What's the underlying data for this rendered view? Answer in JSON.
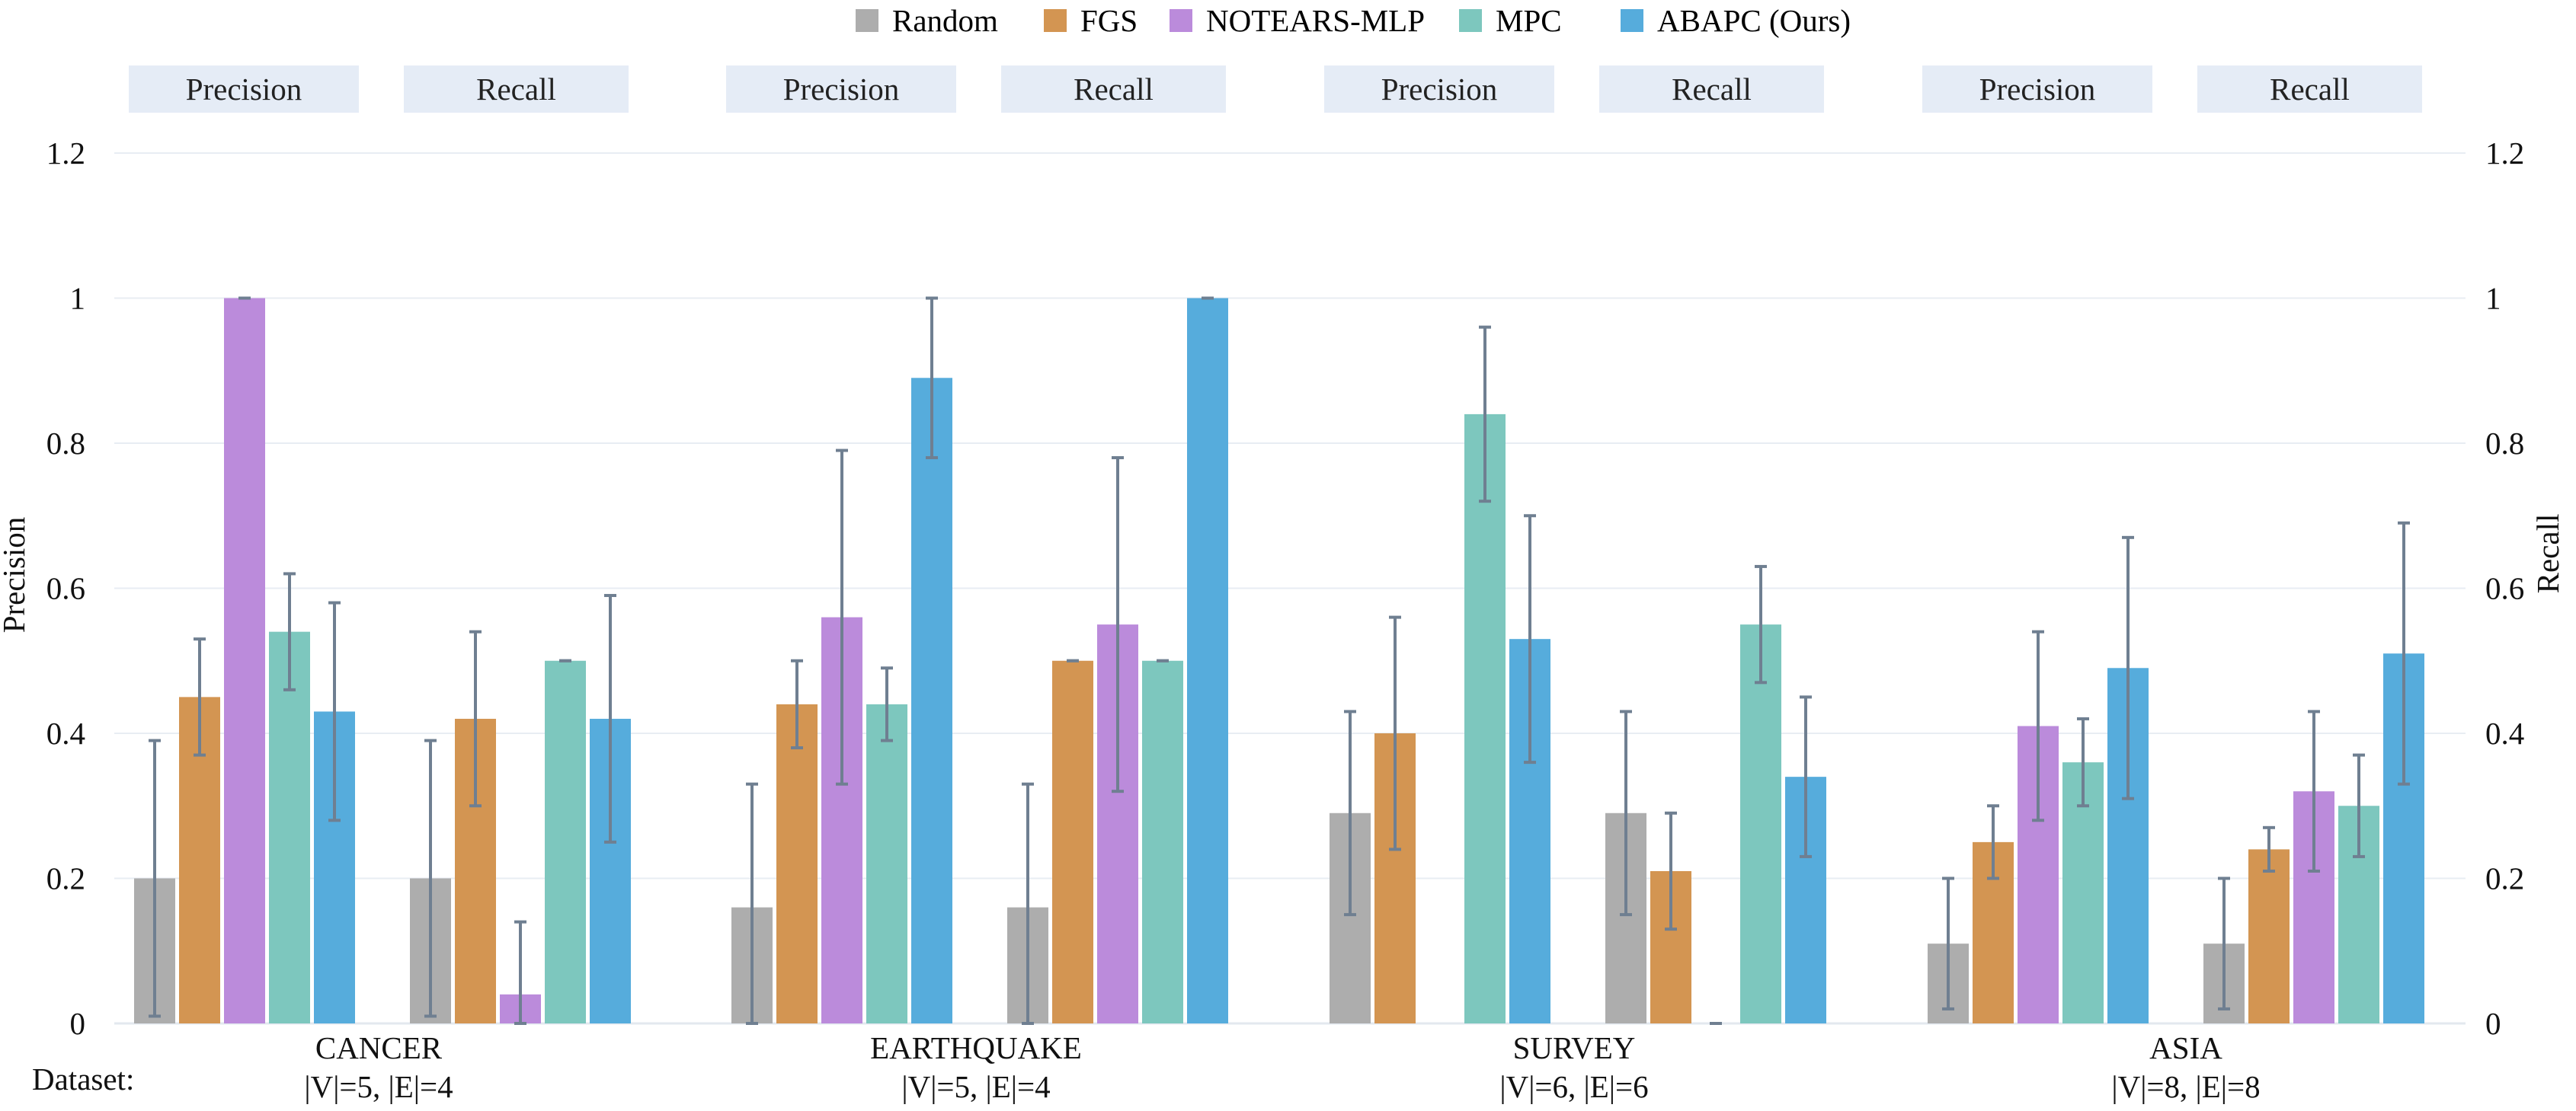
{
  "chart_data": {
    "type": "bar",
    "legend": [
      {
        "name": "Random",
        "color": "#adadad"
      },
      {
        "name": "FGS",
        "color": "#d39552"
      },
      {
        "name": "NOTEARS-MLP",
        "color": "#bb8bdb"
      },
      {
        "name": "MPC",
        "color": "#7dc7be"
      },
      {
        "name": "ABAPC (Ours)",
        "color": "#56acdc"
      }
    ],
    "panel_labels": [
      "Precision",
      "Recall",
      "Precision",
      "Recall",
      "Precision",
      "Recall",
      "Precision",
      "Recall"
    ],
    "ylabel_left": "Precision",
    "ylabel_right": "Recall",
    "ylim": [
      0,
      1.2
    ],
    "y_ticks": [
      "0",
      "0.2",
      "0.4",
      "0.6",
      "0.8",
      "1",
      "1.2"
    ],
    "xlabel": "Dataset:",
    "groups": [
      {
        "name": "CANCER",
        "subtitle": "|V|=5, |E|=4",
        "precision": [
          {
            "value": 0.2,
            "err": [
              0.01,
              0.39
            ]
          },
          {
            "value": 0.45,
            "err": [
              0.37,
              0.53
            ]
          },
          {
            "value": 1.0,
            "err": [
              1.0,
              1.0
            ]
          },
          {
            "value": 0.54,
            "err": [
              0.46,
              0.62
            ]
          },
          {
            "value": 0.43,
            "err": [
              0.28,
              0.58
            ]
          }
        ],
        "recall": [
          {
            "value": 0.2,
            "err": [
              0.01,
              0.39
            ]
          },
          {
            "value": 0.42,
            "err": [
              0.3,
              0.54
            ]
          },
          {
            "value": 0.04,
            "err": [
              0.0,
              0.14
            ]
          },
          {
            "value": 0.5,
            "err": [
              0.5,
              0.5
            ]
          },
          {
            "value": 0.42,
            "err": [
              0.25,
              0.59
            ]
          }
        ]
      },
      {
        "name": "EARTHQUAKE",
        "subtitle": "|V|=5, |E|=4",
        "precision": [
          {
            "value": 0.16,
            "err": [
              0.0,
              0.33
            ]
          },
          {
            "value": 0.44,
            "err": [
              0.38,
              0.5
            ]
          },
          {
            "value": 0.56,
            "err": [
              0.33,
              0.79
            ]
          },
          {
            "value": 0.44,
            "err": [
              0.39,
              0.49
            ]
          },
          {
            "value": 0.89,
            "err": [
              0.78,
              1.0
            ]
          }
        ],
        "recall": [
          {
            "value": 0.16,
            "err": [
              0.0,
              0.33
            ]
          },
          {
            "value": 0.5,
            "err": [
              0.5,
              0.5
            ]
          },
          {
            "value": 0.55,
            "err": [
              0.32,
              0.78
            ]
          },
          {
            "value": 0.5,
            "err": [
              0.5,
              0.5
            ]
          },
          {
            "value": 1.0,
            "err": [
              1.0,
              1.0
            ]
          }
        ]
      },
      {
        "name": "SURVEY",
        "subtitle": "|V|=6, |E|=6",
        "precision": [
          {
            "value": 0.29,
            "err": [
              0.15,
              0.43
            ]
          },
          {
            "value": 0.4,
            "err": [
              0.24,
              0.56
            ]
          },
          {
            "value": 0.0,
            "err": null
          },
          {
            "value": 0.84,
            "err": [
              0.72,
              0.96
            ]
          },
          {
            "value": 0.53,
            "err": [
              0.36,
              0.7
            ]
          }
        ],
        "recall": [
          {
            "value": 0.29,
            "err": [
              0.15,
              0.43
            ]
          },
          {
            "value": 0.21,
            "err": [
              0.13,
              0.29
            ]
          },
          {
            "value": 0.0,
            "err": [
              0.0,
              0.0
            ]
          },
          {
            "value": 0.55,
            "err": [
              0.47,
              0.63
            ]
          },
          {
            "value": 0.34,
            "err": [
              0.23,
              0.45
            ]
          }
        ]
      },
      {
        "name": "ASIA",
        "subtitle": "|V|=8, |E|=8",
        "precision": [
          {
            "value": 0.11,
            "err": [
              0.02,
              0.2
            ]
          },
          {
            "value": 0.25,
            "err": [
              0.2,
              0.3
            ]
          },
          {
            "value": 0.41,
            "err": [
              0.28,
              0.54
            ]
          },
          {
            "value": 0.36,
            "err": [
              0.3,
              0.42
            ]
          },
          {
            "value": 0.49,
            "err": [
              0.31,
              0.67
            ]
          }
        ],
        "recall": [
          {
            "value": 0.11,
            "err": [
              0.02,
              0.2
            ]
          },
          {
            "value": 0.24,
            "err": [
              0.21,
              0.27
            ]
          },
          {
            "value": 0.32,
            "err": [
              0.21,
              0.43
            ]
          },
          {
            "value": 0.3,
            "err": [
              0.23,
              0.37
            ]
          },
          {
            "value": 0.51,
            "err": [
              0.33,
              0.69
            ]
          }
        ]
      }
    ],
    "error_bar_color": "#6f7f91",
    "panel_label_bg": "#e5ecf6",
    "gridline_color": "#e8edf3"
  }
}
